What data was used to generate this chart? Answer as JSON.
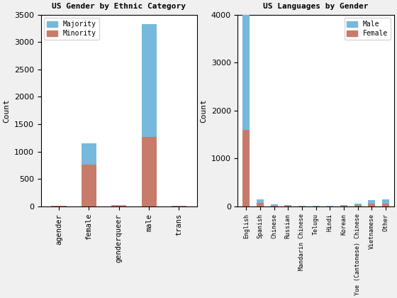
{
  "chart1": {
    "title": "US Gender by Ethnic Category",
    "categories": [
      "agender",
      "female",
      "genderqueer",
      "male",
      "trans"
    ],
    "majority": [
      10,
      390,
      10,
      2050,
      8
    ],
    "minority": [
      8,
      760,
      18,
      1270,
      12
    ],
    "ylim": [
      0,
      3500
    ],
    "yticks": [
      0,
      500,
      1000,
      1500,
      2000,
      2500,
      3000,
      3500
    ],
    "ylabel": "Count",
    "majority_color": "#77B9DC",
    "minority_color": "#C87B6A",
    "legend_labels": [
      "Majority",
      "Minority"
    ]
  },
  "chart2": {
    "title": "US Languages by Gender",
    "categories": [
      "English",
      "Spanish",
      "Chinese",
      "Russian",
      "Mandarin Chinese",
      "Telugu",
      "Hindi",
      "Korean",
      "Yue (Cantonese) Chinese",
      "Vietnamese",
      "Other"
    ],
    "male": [
      2400,
      80,
      25,
      18,
      12,
      8,
      12,
      18,
      30,
      80,
      90
    ],
    "female": [
      1600,
      75,
      22,
      12,
      8,
      6,
      8,
      12,
      25,
      60,
      55
    ],
    "ylim": [
      0,
      4000
    ],
    "yticks": [
      0,
      1000,
      2000,
      3000,
      4000
    ],
    "ylabel": "Count",
    "male_color": "#77B9DC",
    "female_color": "#C87B6A",
    "legend_labels": [
      "Male",
      "Female"
    ]
  },
  "figure_bg": "#f0f0f0",
  "axes_bg": "#ffffff"
}
